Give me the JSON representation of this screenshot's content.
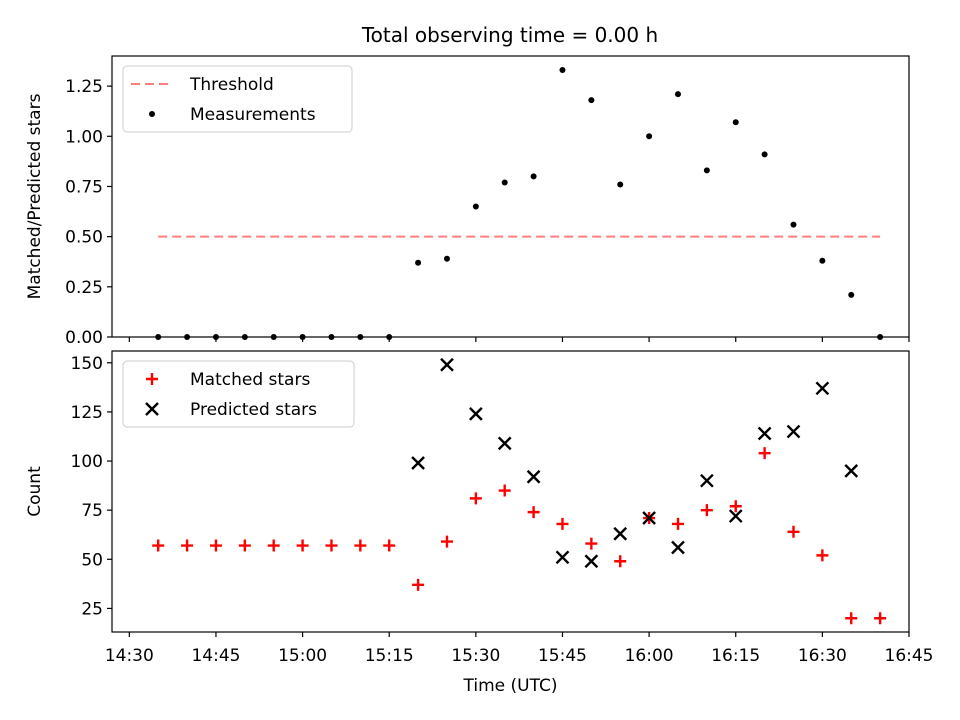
{
  "title": "Total observing time = 0.00 h",
  "colors": {
    "threshold": "#ff7f7f",
    "measurements": "#000000",
    "matched": "#ff0000",
    "predicted": "#000000"
  },
  "chart_data": [
    {
      "type": "scatter",
      "name": "ratio-panel",
      "ylabel": "Matched/Predicted stars",
      "xlabel": "",
      "xlim": [
        "14:27",
        "16:45"
      ],
      "ylim": [
        0,
        1.4
      ],
      "yticks": [
        0.0,
        0.25,
        0.5,
        0.75,
        1.0,
        1.25
      ],
      "ytick_labels": [
        "0.00",
        "0.25",
        "0.50",
        "0.75",
        "1.00",
        "1.25"
      ],
      "legend_position": "top-left",
      "grid": false,
      "series": [
        {
          "name": "Threshold",
          "kind": "dashed-line",
          "x": [
            "14:35",
            "16:40"
          ],
          "y": [
            0.5,
            0.5
          ]
        },
        {
          "name": "Measurements",
          "kind": "dot",
          "x": [
            "14:35",
            "14:40",
            "14:45",
            "14:50",
            "14:55",
            "15:00",
            "15:05",
            "15:10",
            "15:15",
            "15:20",
            "15:25",
            "15:30",
            "15:35",
            "15:40",
            "15:45",
            "15:50",
            "15:55",
            "16:00",
            "16:05",
            "16:10",
            "16:15",
            "16:20",
            "16:25",
            "16:30",
            "16:35",
            "16:40"
          ],
          "y": [
            0,
            0,
            0,
            0,
            0,
            0,
            0,
            0,
            0,
            0.37,
            0.39,
            0.65,
            0.77,
            0.8,
            1.33,
            1.18,
            0.76,
            1.0,
            1.21,
            0.83,
            1.07,
            0.91,
            0.56,
            0.38,
            0.21,
            0
          ]
        }
      ]
    },
    {
      "type": "scatter",
      "name": "count-panel",
      "ylabel": "Count",
      "xlabel": "Time (UTC)",
      "xlim": [
        "14:27",
        "16:45"
      ],
      "ylim": [
        13,
        156
      ],
      "yticks": [
        25,
        50,
        75,
        100,
        125,
        150
      ],
      "ytick_labels": [
        "25",
        "50",
        "75",
        "100",
        "125",
        "150"
      ],
      "xticks": [
        "14:30",
        "14:45",
        "15:00",
        "15:15",
        "15:30",
        "15:45",
        "16:00",
        "16:15",
        "16:30",
        "16:45"
      ],
      "legend_position": "top-left",
      "grid": false,
      "series": [
        {
          "name": "Matched stars",
          "kind": "plus",
          "x": [
            "14:35",
            "14:40",
            "14:45",
            "14:50",
            "14:55",
            "15:00",
            "15:05",
            "15:10",
            "15:15",
            "15:20",
            "15:25",
            "15:30",
            "15:35",
            "15:40",
            "15:45",
            "15:50",
            "15:55",
            "16:00",
            "16:05",
            "16:10",
            "16:15",
            "16:20",
            "16:25",
            "16:30",
            "16:35",
            "16:40"
          ],
          "y": [
            57,
            57,
            57,
            57,
            57,
            57,
            57,
            57,
            57,
            37,
            59,
            81,
            85,
            74,
            68,
            58,
            49,
            71,
            68,
            75,
            77,
            104,
            64,
            52,
            20,
            20
          ]
        },
        {
          "name": "Predicted stars",
          "kind": "x",
          "x": [
            "15:20",
            "15:25",
            "15:30",
            "15:35",
            "15:40",
            "15:45",
            "15:50",
            "15:55",
            "16:00",
            "16:05",
            "16:10",
            "16:15",
            "16:20",
            "16:25",
            "16:30",
            "16:35"
          ],
          "y": [
            99,
            149,
            124,
            109,
            92,
            51,
            49,
            63,
            71,
            56,
            90,
            72,
            114,
            115,
            137,
            95
          ]
        }
      ]
    }
  ]
}
